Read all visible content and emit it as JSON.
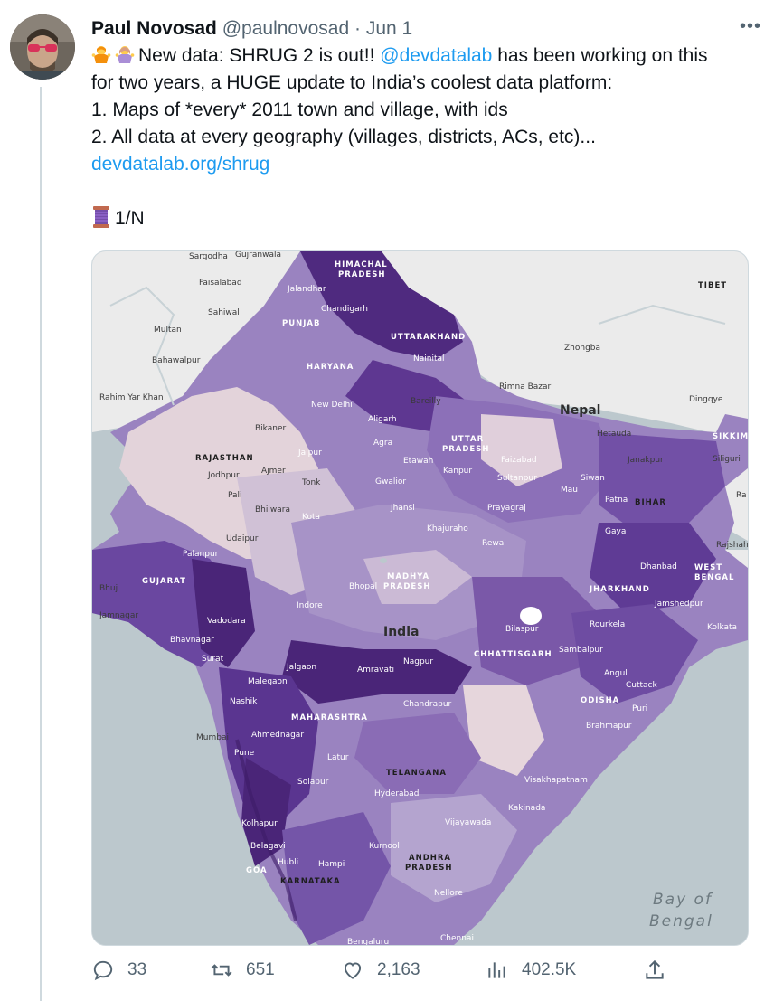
{
  "author": {
    "name": "Paul Novosad",
    "handle": "@paulnovosad",
    "separator": "·",
    "date": "Jun 1"
  },
  "tweet": {
    "line1_prefix": "New data: SHRUG 2 is out!! ",
    "mention": "@devdatalab",
    "line1_suffix": " has been working on this",
    "line2": "for two years, a HUGE update to India’s coolest data platform:",
    "line3": "1. Maps of *every* 2011 town and village, with ids",
    "line4": "2. All data at every geography (villages, districts, ACs, etc)...",
    "url": "devdatalab.org/shrug",
    "thread_marker": "1/N"
  },
  "map": {
    "labels": {
      "sargodha": "Sargodha",
      "gujranwala": "Gujranwala",
      "faisalabad": "Faisalabad",
      "sahiwal": "Sahiwal",
      "multan": "Multan",
      "bahawalpur": "Bahawalpur",
      "rahim_yar_khan": "Rahim Yar Khan",
      "himachal_1": "HIMACHAL",
      "himachal_2": "PRADESH",
      "jalandhar": "Jalandhar",
      "chandigarh": "Chandigarh",
      "punjab": "PUNJAB",
      "uttarakhand": "UTTARAKHAND",
      "haryana": "HARYANA",
      "nainital": "Nainital",
      "tibet": "TIBET",
      "zhongba": "Zhongba",
      "rimna_bazar": "Rimna Bazar",
      "nepal": "Nepal",
      "dingqye": "Dingqye",
      "new_delhi": "New Delhi",
      "bareilly": "Bareilly",
      "bikaner": "Bikaner",
      "aligarh": "Aligarh",
      "agra": "Agra",
      "uttar_1": "UTTAR",
      "uttar_2": "PRADESH",
      "hetauda": "Hetauda",
      "sikkim": "SIKKIM",
      "siliguri": "Siliguri",
      "rajasthan": "RAJASTHAN",
      "jaipur": "Jaipur",
      "etawah": "Etawah",
      "faizabad": "Faizabad",
      "janakpur": "Janakpur",
      "jodhpur": "Jodhpur",
      "ajmer": "Ajmer",
      "tonk": "Tonk",
      "kanpur": "Kanpur",
      "gwalior": "Gwalior",
      "sultanpur": "Sultanpur",
      "mau": "Mau",
      "siwan": "Siwan",
      "pali": "Pali",
      "patna": "Patna",
      "bihar": "BIHAR",
      "ra": "Ra",
      "bhilwara": "Bhilwara",
      "kota": "Kota",
      "jhansi": "Jhansi",
      "prayagraj": "Prayagraj",
      "udaipur": "Udaipur",
      "khajuraho": "Khajuraho",
      "gaya": "Gaya",
      "rewa": "Rewa",
      "palanpur": "Palanpur",
      "rajshah": "Rajshah",
      "gujarat": "GUJARAT",
      "madhya_1": "MADHYA",
      "madhya_2": "PRADESH",
      "dhanbad": "Dhanbad",
      "west_1": "WEST",
      "west_2": "BENGAL",
      "bhuj": "Bhuj",
      "bhopal": "Bhopal",
      "jharkhand": "JHARKHAND",
      "jamshedpur": "Jamshedpur",
      "jamnagar": "Jamnagar",
      "indore": "Indore",
      "vadodara": "Vadodara",
      "rourkela": "Rourkela",
      "kolkata": "Kolkata",
      "india": "India",
      "bilaspur": "Bilaspur",
      "bhavnagar": "Bhavnagar",
      "sambalpur": "Sambalpur",
      "surat": "Surat",
      "jalgaon": "Jalgaon",
      "amravati": "Amravati",
      "nagpur": "Nagpur",
      "chhattisgarh": "CHHATTISGARH",
      "angul": "Angul",
      "malegaon": "Malegaon",
      "cuttack": "Cuttack",
      "nashik": "Nashik",
      "chandrapur": "Chandrapur",
      "odisha": "ODISHA",
      "puri": "Puri",
      "maharashtra": "MAHARASHTRA",
      "ahmednagar": "Ahmednagar",
      "mumbai": "Mumbai",
      "brahmapur": "Brahmapur",
      "pune": "Pune",
      "latur": "Latur",
      "telangana": "TELANGANA",
      "solapur": "Solapur",
      "visakhapatnam": "Visakhapatnam",
      "hyderabad": "Hyderabad",
      "kolhapur": "Kolhapur",
      "kakinada": "Kakinada",
      "vijayawada": "Vijayawada",
      "belagavi": "Belagavi",
      "kurnool": "Kurnool",
      "hubli": "Hubli",
      "hampi": "Hampi",
      "andhra_1": "ANDHRA",
      "andhra_2": "PRADESH",
      "goa": "GOA",
      "karnataka": "KARNATAKA",
      "nellore": "Nellore",
      "bay_1": "Bay of",
      "bay_2": "Bengal",
      "bengaluru": "Bengaluru",
      "chennai": "Chennai"
    },
    "colors": {
      "water": "#bcc8cd",
      "land_gray": "#ebebeb",
      "dark": "#4a2578",
      "mid": "#7a58a8",
      "light": "#a995c9",
      "pale": "#e6d6dc"
    }
  },
  "actions": {
    "reply_count": "33",
    "retweet_count": "651",
    "like_count": "2,163",
    "view_count": "402.5K"
  },
  "colors": {
    "link": "#1d9bf0",
    "muted": "#536471",
    "text": "#0f1419"
  }
}
